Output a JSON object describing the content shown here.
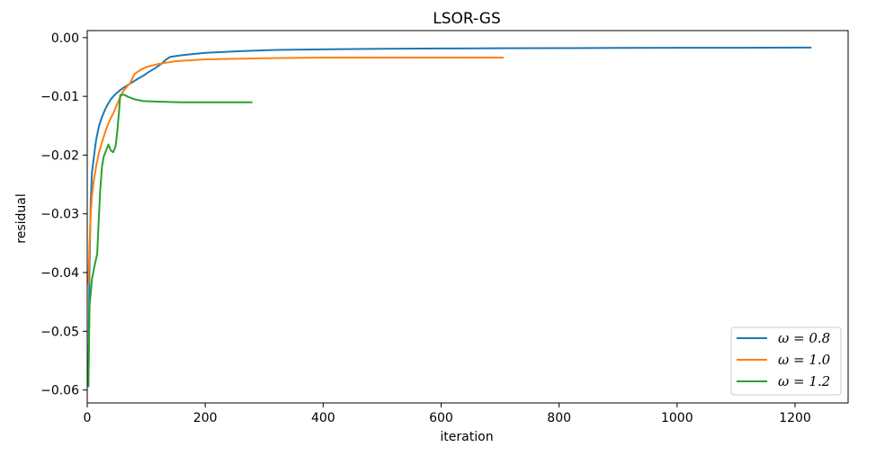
{
  "chart_data": {
    "type": "line",
    "title": "LSOR-GS",
    "xlabel": "iteration",
    "ylabel": "residual",
    "xlim": [
      0,
      1290
    ],
    "ylim": [
      -0.0622,
      0.0012
    ],
    "xticks": [
      0,
      200,
      400,
      600,
      800,
      1000,
      1200
    ],
    "yticks": [
      0.0,
      -0.01,
      -0.02,
      -0.03,
      -0.04,
      -0.05,
      -0.06
    ],
    "xtick_labels": [
      "0",
      "200",
      "400",
      "600",
      "800",
      "1000",
      "1200"
    ],
    "ytick_labels": [
      "0.00",
      "−0.01",
      "−0.02",
      "−0.03",
      "−0.04",
      "−0.05",
      "−0.06"
    ],
    "grid": false,
    "legend_position": "lower-right",
    "series": [
      {
        "name": "ω = 0.8",
        "color": "#1f77b4",
        "points": [
          [
            2,
            -0.0593
          ],
          [
            4,
            -0.038
          ],
          [
            6,
            -0.028
          ],
          [
            8,
            -0.023
          ],
          [
            11,
            -0.0205
          ],
          [
            15,
            -0.0175
          ],
          [
            20,
            -0.015
          ],
          [
            25,
            -0.0135
          ],
          [
            30,
            -0.0123
          ],
          [
            35,
            -0.0113
          ],
          [
            40,
            -0.0105
          ],
          [
            47,
            -0.0097
          ],
          [
            55,
            -0.009
          ],
          [
            62,
            -0.0085
          ],
          [
            70,
            -0.008
          ],
          [
            78,
            -0.0075
          ],
          [
            86,
            -0.007
          ],
          [
            95,
            -0.0065
          ],
          [
            105,
            -0.0058
          ],
          [
            115,
            -0.0052
          ],
          [
            125,
            -0.0045
          ],
          [
            133,
            -0.0038
          ],
          [
            140,
            -0.0033
          ],
          [
            160,
            -0.003
          ],
          [
            200,
            -0.0026
          ],
          [
            260,
            -0.0023
          ],
          [
            320,
            -0.0021
          ],
          [
            400,
            -0.002
          ],
          [
            500,
            -0.0019
          ],
          [
            600,
            -0.00185
          ],
          [
            700,
            -0.0018
          ],
          [
            800,
            -0.00178
          ],
          [
            900,
            -0.00175
          ],
          [
            1000,
            -0.00173
          ],
          [
            1100,
            -0.00172
          ],
          [
            1228,
            -0.0017
          ]
        ]
      },
      {
        "name": "ω = 1.0",
        "color": "#ff7f0e",
        "points": [
          [
            2,
            -0.042
          ],
          [
            4,
            -0.035
          ],
          [
            6,
            -0.03
          ],
          [
            8,
            -0.027
          ],
          [
            11,
            -0.0245
          ],
          [
            15,
            -0.022
          ],
          [
            20,
            -0.0195
          ],
          [
            25,
            -0.0178
          ],
          [
            30,
            -0.0162
          ],
          [
            35,
            -0.0148
          ],
          [
            40,
            -0.0137
          ],
          [
            45,
            -0.0127
          ],
          [
            50,
            -0.0115
          ],
          [
            55,
            -0.0103
          ],
          [
            60,
            -0.0093
          ],
          [
            66,
            -0.0085
          ],
          [
            73,
            -0.0077
          ],
          [
            80,
            -0.0062
          ],
          [
            90,
            -0.0055
          ],
          [
            100,
            -0.005
          ],
          [
            120,
            -0.0045
          ],
          [
            150,
            -0.004
          ],
          [
            200,
            -0.0037
          ],
          [
            300,
            -0.0035
          ],
          [
            400,
            -0.0034
          ],
          [
            500,
            -0.0034
          ],
          [
            600,
            -0.0034
          ],
          [
            706,
            -0.0034
          ]
        ]
      },
      {
        "name": "ω = 1.2",
        "color": "#2ca02c",
        "points": [
          [
            2,
            -0.0595
          ],
          [
            4,
            -0.0455
          ],
          [
            6,
            -0.0435
          ],
          [
            8,
            -0.0412
          ],
          [
            12,
            -0.039
          ],
          [
            17,
            -0.0368
          ],
          [
            19,
            -0.032
          ],
          [
            22,
            -0.026
          ],
          [
            25,
            -0.022
          ],
          [
            28,
            -0.0202
          ],
          [
            32,
            -0.0192
          ],
          [
            36,
            -0.0182
          ],
          [
            40,
            -0.0192
          ],
          [
            44,
            -0.0195
          ],
          [
            48,
            -0.0185
          ],
          [
            51,
            -0.016
          ],
          [
            54,
            -0.0125
          ],
          [
            56,
            -0.0098
          ],
          [
            62,
            -0.0097
          ],
          [
            70,
            -0.0101
          ],
          [
            80,
            -0.0105
          ],
          [
            95,
            -0.0108
          ],
          [
            120,
            -0.0109
          ],
          [
            160,
            -0.011
          ],
          [
            220,
            -0.011
          ],
          [
            280,
            -0.011
          ]
        ]
      }
    ]
  }
}
